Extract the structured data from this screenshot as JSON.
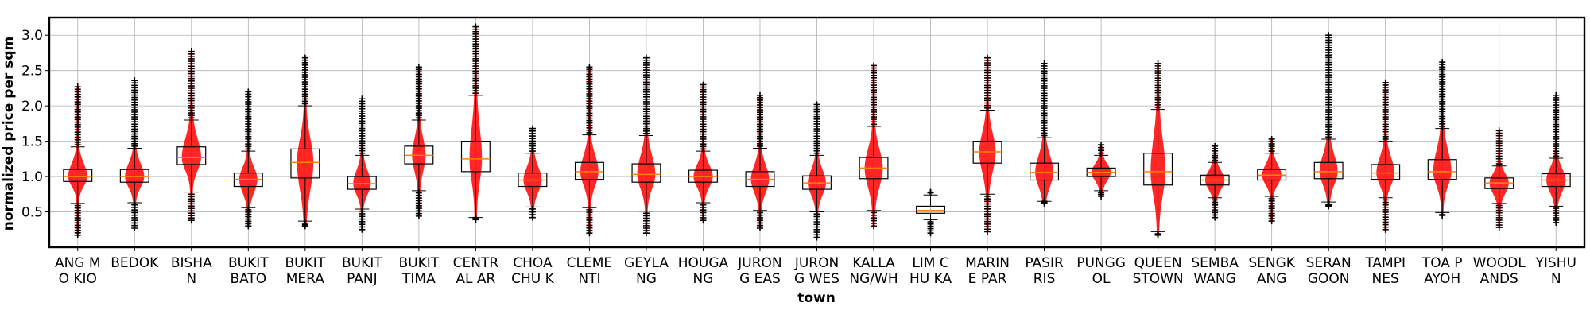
{
  "chart_data": {
    "type": "boxplot",
    "title": "",
    "xlabel": "town",
    "ylabel": "normalized price per sqm",
    "ylim": [
      0,
      3.25
    ],
    "yticks": [
      0.5,
      1.0,
      1.5,
      2.0,
      2.5,
      3.0
    ],
    "ytick_labels": [
      "0.5",
      "1.0",
      "1.5",
      "2.0",
      "2.5",
      "3.0"
    ],
    "grid": true,
    "box_color": "#000000",
    "median_color": "#ff7f0e",
    "violin_color": "#ff0000",
    "categories": [
      [
        "ANG M",
        "O KIO"
      ],
      [
        "BEDOK"
      ],
      [
        "BISHA",
        "N"
      ],
      [
        "BUKIT",
        "BATO"
      ],
      [
        "BUKIT",
        "MERA"
      ],
      [
        "BUKIT",
        "PANJ"
      ],
      [
        "BUKIT",
        "TIMA"
      ],
      [
        "CENTR",
        "AL AR"
      ],
      [
        "CHOA",
        "CHU K"
      ],
      [
        "CLEME",
        "NTI"
      ],
      [
        "GEYLA",
        "NG"
      ],
      [
        "HOUGA",
        "NG"
      ],
      [
        "JURON",
        "G EAS"
      ],
      [
        "JURON",
        "G WES"
      ],
      [
        "KALLA",
        "NG/WH"
      ],
      [
        "LIM C",
        "HU KA"
      ],
      [
        "MARIN",
        "E PAR"
      ],
      [
        "PASIR",
        "RIS"
      ],
      [
        "PUNGG",
        "OL"
      ],
      [
        "QUEEN",
        "STOWN"
      ],
      [
        "SEMBA",
        "WANG"
      ],
      [
        "SENGK",
        "ANG"
      ],
      [
        "SERAN",
        "GOON"
      ],
      [
        "TAMPI",
        "NES"
      ],
      [
        "TOA P",
        "AYOH"
      ],
      [
        "WOODL",
        "ANDS"
      ],
      [
        "YISHU",
        "N"
      ]
    ],
    "boxes": [
      {
        "q1": 0.93,
        "median": 1.0,
        "q3": 1.1,
        "whisker_low": 0.62,
        "whisker_high": 1.42,
        "min": 0.17,
        "max": 2.27,
        "violin_width": 0.3
      },
      {
        "q1": 0.92,
        "median": 1.0,
        "q3": 1.1,
        "whisker_low": 0.63,
        "whisker_high": 1.4,
        "min": 0.27,
        "max": 2.36,
        "violin_width": 0.3
      },
      {
        "q1": 1.17,
        "median": 1.27,
        "q3": 1.42,
        "whisker_low": 0.78,
        "whisker_high": 1.8,
        "min": 0.38,
        "max": 2.77,
        "violin_width": 0.3
      },
      {
        "q1": 0.86,
        "median": 0.96,
        "q3": 1.05,
        "whisker_low": 0.56,
        "whisker_high": 1.36,
        "min": 0.3,
        "max": 2.2,
        "violin_width": 0.28
      },
      {
        "q1": 0.98,
        "median": 1.2,
        "q3": 1.39,
        "whisker_low": 0.37,
        "whisker_high": 2.0,
        "min": 0.3,
        "max": 2.68,
        "violin_width": 0.25
      },
      {
        "q1": 0.82,
        "median": 0.9,
        "q3": 1.0,
        "whisker_low": 0.54,
        "whisker_high": 1.3,
        "min": 0.25,
        "max": 2.1,
        "violin_width": 0.27
      },
      {
        "q1": 1.18,
        "median": 1.3,
        "q3": 1.43,
        "whisker_low": 0.8,
        "whisker_high": 1.8,
        "min": 0.44,
        "max": 2.55,
        "violin_width": 0.2
      },
      {
        "q1": 1.07,
        "median": 1.25,
        "q3": 1.5,
        "whisker_low": 0.42,
        "whisker_high": 2.15,
        "min": 0.42,
        "max": 3.12,
        "violin_width": 0.18
      },
      {
        "q1": 0.86,
        "median": 0.95,
        "q3": 1.05,
        "whisker_low": 0.57,
        "whisker_high": 1.33,
        "min": 0.42,
        "max": 1.68,
        "violin_width": 0.28
      },
      {
        "q1": 0.96,
        "median": 1.07,
        "q3": 1.2,
        "whisker_low": 0.56,
        "whisker_high": 1.59,
        "min": 0.2,
        "max": 2.55,
        "violin_width": 0.28
      },
      {
        "q1": 0.92,
        "median": 1.03,
        "q3": 1.18,
        "whisker_low": 0.51,
        "whisker_high": 1.58,
        "min": 0.2,
        "max": 2.68,
        "violin_width": 0.28
      },
      {
        "q1": 0.92,
        "median": 1.0,
        "q3": 1.09,
        "whisker_low": 0.63,
        "whisker_high": 1.36,
        "min": 0.38,
        "max": 2.3,
        "violin_width": 0.3
      },
      {
        "q1": 0.86,
        "median": 0.96,
        "q3": 1.07,
        "whisker_low": 0.52,
        "whisker_high": 1.4,
        "min": 0.27,
        "max": 2.15,
        "violin_width": 0.28
      },
      {
        "q1": 0.82,
        "median": 0.91,
        "q3": 1.01,
        "whisker_low": 0.5,
        "whisker_high": 1.3,
        "min": 0.14,
        "max": 2.02,
        "violin_width": 0.28
      },
      {
        "q1": 0.97,
        "median": 1.12,
        "q3": 1.27,
        "whisker_low": 0.52,
        "whisker_high": 1.71,
        "min": 0.3,
        "max": 2.57,
        "violin_width": 0.28
      },
      {
        "q1": 0.48,
        "median": 0.52,
        "q3": 0.58,
        "whisker_low": 0.39,
        "whisker_high": 0.74,
        "min": 0.2,
        "max": 0.78,
        "violin_width": 0.0
      },
      {
        "q1": 1.19,
        "median": 1.35,
        "q3": 1.5,
        "whisker_low": 0.75,
        "whisker_high": 1.94,
        "min": 0.22,
        "max": 2.68,
        "violin_width": 0.25
      },
      {
        "q1": 0.95,
        "median": 1.06,
        "q3": 1.19,
        "whisker_low": 0.65,
        "whisker_high": 1.55,
        "min": 0.65,
        "max": 2.6,
        "violin_width": 0.28
      },
      {
        "q1": 1.0,
        "median": 1.06,
        "q3": 1.12,
        "whisker_low": 0.8,
        "whisker_high": 1.3,
        "min": 0.72,
        "max": 1.45,
        "violin_width": 0.3
      },
      {
        "q1": 0.88,
        "median": 1.07,
        "q3": 1.33,
        "whisker_low": 0.22,
        "whisker_high": 1.95,
        "min": 0.17,
        "max": 2.6,
        "violin_width": 0.22
      },
      {
        "q1": 0.88,
        "median": 0.95,
        "q3": 1.02,
        "whisker_low": 0.7,
        "whisker_high": 1.2,
        "min": 0.42,
        "max": 1.43,
        "violin_width": 0.3
      },
      {
        "q1": 0.95,
        "median": 1.02,
        "q3": 1.1,
        "whisker_low": 0.72,
        "whisker_high": 1.33,
        "min": 0.37,
        "max": 1.53,
        "violin_width": 0.3
      },
      {
        "q1": 0.97,
        "median": 1.07,
        "q3": 1.2,
        "whisker_low": 0.64,
        "whisker_high": 1.53,
        "min": 0.58,
        "max": 3.0,
        "violin_width": 0.28
      },
      {
        "q1": 0.96,
        "median": 1.05,
        "q3": 1.17,
        "whisker_low": 0.7,
        "whisker_high": 1.5,
        "min": 0.25,
        "max": 2.33,
        "violin_width": 0.28
      },
      {
        "q1": 0.96,
        "median": 1.07,
        "q3": 1.24,
        "whisker_low": 0.49,
        "whisker_high": 1.68,
        "min": 0.45,
        "max": 2.62,
        "violin_width": 0.28
      },
      {
        "q1": 0.83,
        "median": 0.91,
        "q3": 0.98,
        "whisker_low": 0.62,
        "whisker_high": 1.15,
        "min": 0.28,
        "max": 1.65,
        "violin_width": 0.3
      },
      {
        "q1": 0.86,
        "median": 0.95,
        "q3": 1.04,
        "whisker_low": 0.58,
        "whisker_high": 1.26,
        "min": 0.35,
        "max": 2.15,
        "violin_width": 0.3
      }
    ]
  }
}
